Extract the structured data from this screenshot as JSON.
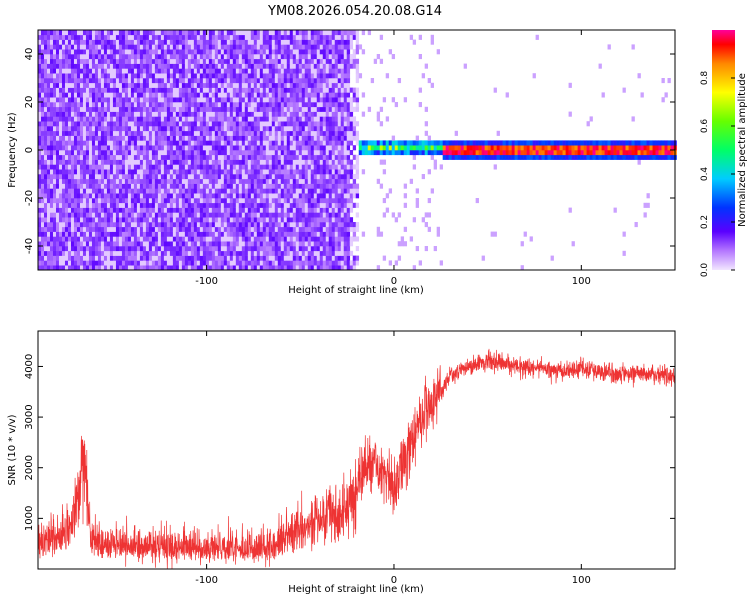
{
  "title": "YM08.2026.054.20.08.G14",
  "chart_data": [
    {
      "type": "heatmap",
      "title": "",
      "xlabel": "Height of straight line (km)",
      "ylabel": "Frequency (Hz)",
      "xlim": [
        -190,
        150
      ],
      "ylim": [
        -50,
        50
      ],
      "xticks": [
        -100,
        0,
        100
      ],
      "yticks": [
        -40,
        -20,
        0,
        20,
        40
      ],
      "colorbar": {
        "label": "Normalized spectral amplitude",
        "range": [
          0,
          1
        ],
        "ticks": [
          "0.0",
          "0.2",
          "0.4",
          "0.6",
          "0.8"
        ]
      },
      "regions": [
        {
          "x_range": [
            -190,
            -20
          ],
          "description_value": "broadband noise",
          "amplitude": 0.12
        },
        {
          "x_range": [
            -25,
            25
          ],
          "freq_center": 1,
          "amplitude": 0.6
        },
        {
          "x_range": [
            25,
            150
          ],
          "freq_center": 0,
          "amplitude": 1.0
        }
      ]
    },
    {
      "type": "line",
      "title": "",
      "xlabel": "Height of straight line (km)",
      "ylabel": "SNR (10 * v/v)",
      "xlim": [
        -190,
        150
      ],
      "ylim": [
        0,
        4700
      ],
      "xticks": [
        -100,
        0,
        100
      ],
      "yticks": [
        1000,
        2000,
        3000,
        4000
      ],
      "series": [
        {
          "color": "#ee3333",
          "x": [
            -190,
            -180,
            -172,
            -168,
            -165,
            -162,
            -155,
            -140,
            -120,
            -100,
            -80,
            -65,
            -55,
            -45,
            -35,
            -25,
            -20,
            -15,
            -10,
            -5,
            0,
            5,
            10,
            15,
            20,
            25,
            30,
            40,
            50,
            60,
            70,
            80,
            90,
            100,
            110,
            120,
            130,
            140,
            150
          ],
          "y": [
            600,
            700,
            900,
            1900,
            2200,
            800,
            500,
            550,
            500,
            480,
            450,
            500,
            800,
            1000,
            1200,
            1400,
            1600,
            1900,
            2100,
            1800,
            1600,
            2100,
            2500,
            3000,
            3300,
            3500,
            3800,
            4000,
            4100,
            4050,
            4000,
            3950,
            3900,
            3950,
            3900,
            3850,
            3900,
            3850,
            3800
          ]
        }
      ]
    }
  ]
}
